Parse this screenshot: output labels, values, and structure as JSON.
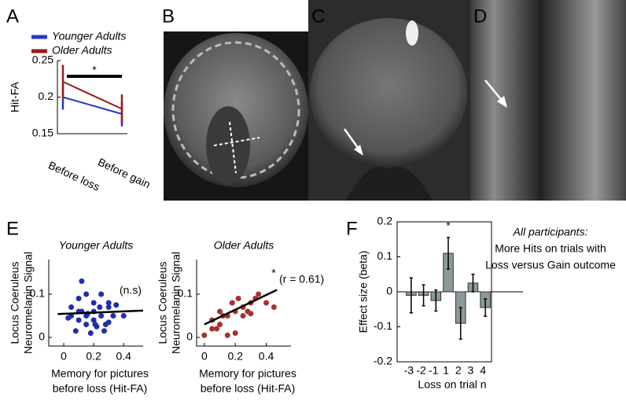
{
  "chart_data": [
    {
      "type": "line",
      "label": "A",
      "ylabel": "Hit-FA",
      "categories": [
        "Before loss",
        "Before gain"
      ],
      "series": [
        {
          "name": "Younger Adults",
          "color": "#2b35c8",
          "values": [
            0.2,
            0.177
          ],
          "errors": [
            0.017,
            0.017
          ]
        },
        {
          "name": "Older Adults",
          "color": "#9b1c1c",
          "values": [
            0.221,
            0.184
          ],
          "errors": [
            0.023,
            0.02
          ]
        }
      ],
      "ylim": [
        0.15,
        0.25
      ],
      "yticks": [
        0.15,
        0.2,
        0.25
      ],
      "annotation": "*"
    },
    {
      "type": "image",
      "label": "B"
    },
    {
      "type": "image",
      "label": "C"
    },
    {
      "type": "image",
      "label": "D"
    },
    {
      "type": "scatter",
      "label": "E",
      "title": "Younger Adults",
      "color": "#1f2fb0",
      "ylabel": [
        "Locus Coeruleus",
        "Neuromelanin Signal"
      ],
      "xlabel": [
        "Memory for pictures",
        "before loss (Hit-FA)"
      ],
      "x": [
        0.05,
        0.1,
        0.12,
        0.15,
        0.2,
        0.25,
        0.3,
        0.35,
        0.05,
        0.1,
        0.15,
        0.2,
        0.25,
        0.3,
        0.1,
        0.2,
        0.28,
        0.15,
        0.22,
        0.33,
        0.08,
        0.18,
        0.27,
        0.12,
        0.24,
        0.4,
        0.03,
        0.16,
        0.3,
        0.21
      ],
      "y": [
        0.07,
        0.09,
        0.13,
        0.1,
        0.08,
        0.1,
        0.08,
        0.075,
        0.05,
        0.06,
        0.05,
        0.06,
        0.05,
        0.07,
        0.04,
        0.04,
        0.03,
        0.03,
        0.025,
        0.05,
        0.015,
        0.01,
        0.015,
        0.06,
        0.07,
        0.05,
        0.045,
        0.055,
        0.035,
        0.03
      ],
      "fit": {
        "x": [
          -0.04,
          0.53
        ],
        "y": [
          0.054,
          0.062
        ]
      },
      "xlim": [
        -0.1,
        0.53
      ],
      "ylim": [
        -0.02,
        0.18
      ],
      "xticks": [
        0,
        0.2,
        0.4
      ],
      "yticks": [
        0,
        0.1
      ],
      "annotation": "(n.s)"
    },
    {
      "type": "scatter",
      "title": "Older Adults",
      "color": "#a8322a",
      "ylabel": [
        "Locus Coeruleus",
        "Neuromelanin Signal"
      ],
      "xlabel": [
        "Memory for pictures",
        "before loss (Hit-FA)"
      ],
      "x": [
        0,
        0.05,
        0.1,
        0.15,
        0.2,
        0.25,
        0.3,
        0.35,
        0.45,
        0.08,
        0.12,
        0.18,
        0.22,
        0.28,
        0.33,
        0.15,
        0.2,
        0.05,
        0.25,
        0.1,
        0.3,
        0.4
      ],
      "y": [
        0.005,
        0.04,
        0.03,
        0.05,
        0.06,
        0.07,
        0.08,
        0.1,
        0.07,
        0.02,
        0.05,
        0.08,
        0.09,
        0.06,
        0.09,
        0.005,
        0.01,
        0.02,
        0.05,
        0.06,
        0.055,
        0.08
      ],
      "fit": {
        "x": [
          0,
          0.47
        ],
        "y": [
          0.03,
          0.11
        ]
      },
      "xlim": [
        -0.05,
        0.56
      ],
      "ylim": [
        -0.02,
        0.18
      ],
      "xticks": [
        0,
        0.2,
        0.4
      ],
      "yticks": [
        0,
        0.1
      ],
      "annotation": [
        "*",
        "(r = 0.61)"
      ]
    },
    {
      "type": "bar",
      "label": "F",
      "color": "#8a9a9a",
      "ylabel": "Effect size (beta)",
      "xlabel": "Loss on trial n",
      "categories": [
        "-3",
        "-2",
        "-1",
        "1",
        "2",
        "3",
        "4"
      ],
      "values": [
        -0.01,
        -0.01,
        -0.025,
        0.11,
        -0.09,
        0.025,
        -0.045
      ],
      "errors": [
        0.05,
        0.03,
        0.03,
        0.045,
        0.045,
        0.025,
        0.025
      ],
      "ylim": [
        -0.2,
        0.2
      ],
      "yticks": [
        -0.2,
        -0.1,
        0,
        0.1,
        0.2
      ],
      "annotation": "*",
      "note": [
        "All participants:",
        "More Hits on trials with",
        "Loss versus Gain outcome"
      ]
    }
  ]
}
